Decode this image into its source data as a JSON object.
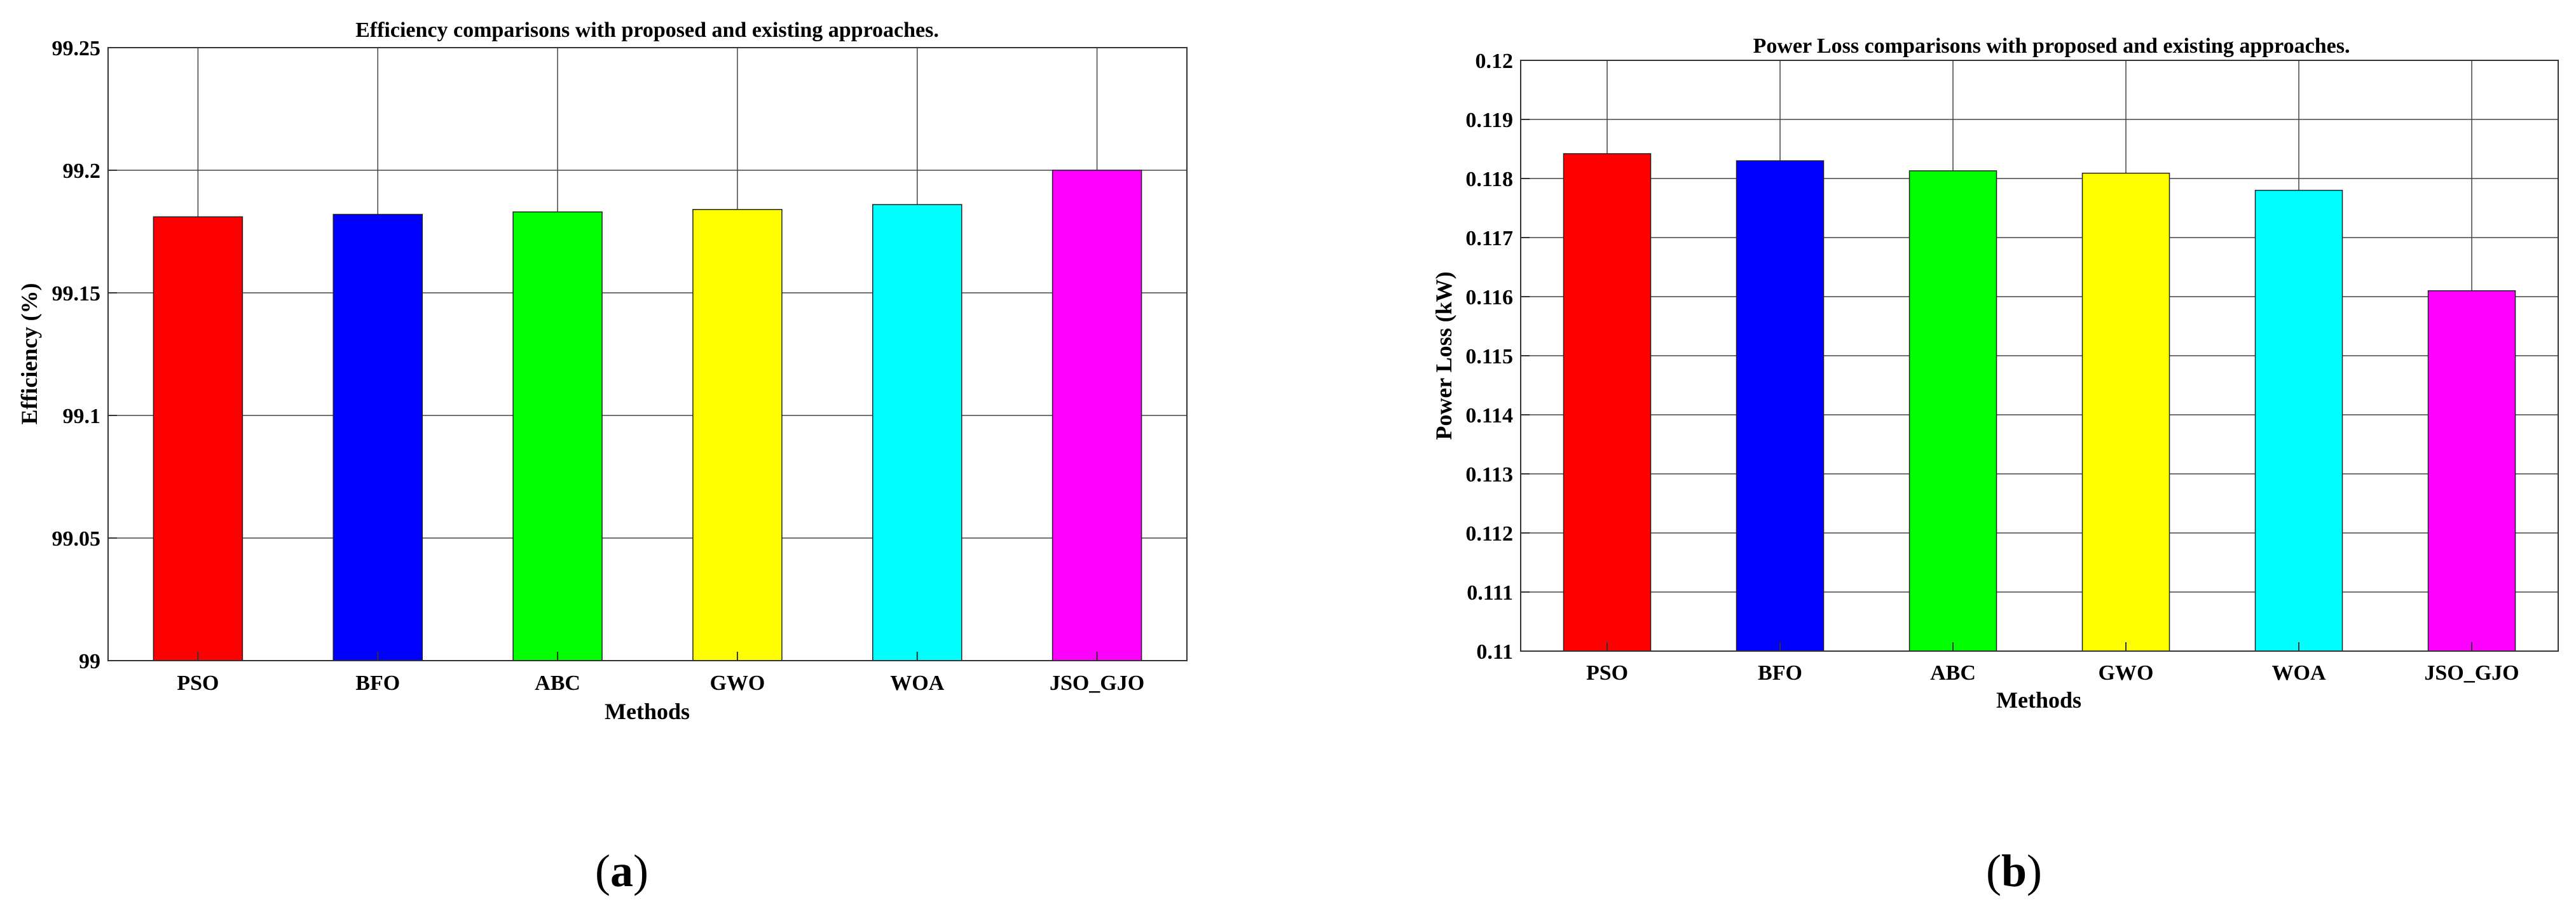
{
  "chart_data": [
    {
      "type": "bar",
      "title": "Efficiency comparisons with proposed and existing approaches.",
      "xlabel": "Methods",
      "ylabel": "Efficiency (%)",
      "categories": [
        "PSO",
        "BFO",
        "ABC",
        "GWO",
        "WOA",
        "JSO_GJO"
      ],
      "values": [
        99.181,
        99.182,
        99.183,
        99.184,
        99.186,
        99.2
      ],
      "colors": [
        "#ff0000",
        "#0000ff",
        "#00ff00",
        "#ffff00",
        "#00ffff",
        "#ff00ff"
      ],
      "ylim": [
        99,
        99.25
      ],
      "yticks": [
        "99",
        "99.05",
        "99.1",
        "99.15",
        "99.2",
        "99.25"
      ],
      "grid": true,
      "panel_label": "(a)"
    },
    {
      "type": "bar",
      "title": "Power Loss comparisons with proposed and existing approaches.",
      "xlabel": "Methods",
      "ylabel": "Power Loss (kW)",
      "categories": [
        "PSO",
        "BFO",
        "ABC",
        "GWO",
        "WOA",
        "JSO_GJO"
      ],
      "values": [
        0.11842,
        0.1183,
        0.11813,
        0.11809,
        0.1178,
        0.1161
      ],
      "colors": [
        "#ff0000",
        "#0000ff",
        "#00ff00",
        "#ffff00",
        "#00ffff",
        "#ff00ff"
      ],
      "ylim": [
        0.11,
        0.12
      ],
      "yticks": [
        "0.11",
        "0.111",
        "0.112",
        "0.113",
        "0.114",
        "0.115",
        "0.116",
        "0.117",
        "0.118",
        "0.119",
        "0.12"
      ],
      "grid": true,
      "panel_label": "(b)"
    }
  ]
}
